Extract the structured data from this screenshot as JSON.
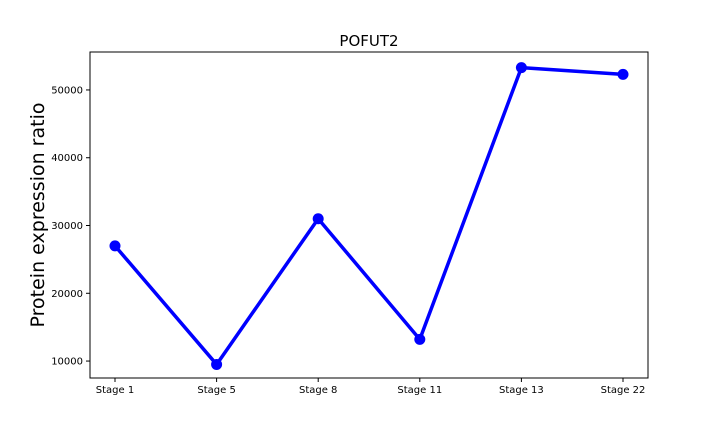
{
  "chart_data": {
    "type": "line",
    "title": "POFUT2",
    "xlabel": "",
    "ylabel": "Protein expression ratio",
    "categories": [
      "Stage 1",
      "Stage 5",
      "Stage 8",
      "Stage 11",
      "Stage 13",
      "Stage 22"
    ],
    "series": [
      {
        "values": [
          27000,
          9500,
          31000,
          13200,
          53300,
          52300
        ]
      }
    ],
    "yticks": [
      10000,
      20000,
      30000,
      40000,
      50000
    ],
    "ylim": [
      7500,
      55600
    ],
    "grid": false,
    "colors": {
      "line": "#0000ff",
      "marker": "#0000ff",
      "axes": "#000000"
    }
  }
}
